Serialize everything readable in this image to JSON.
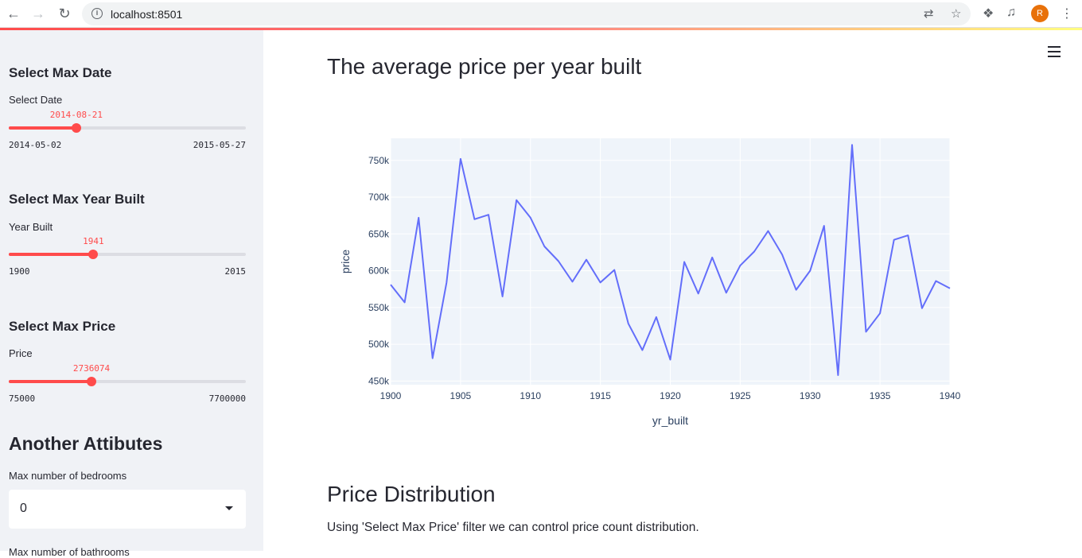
{
  "browser": {
    "url": "localhost:8501",
    "avatar_letter": "R"
  },
  "sidebar": {
    "date_section_title": "Select Max Date",
    "date_label": "Select Date",
    "date_slider": {
      "value": "2014-08-21",
      "min": "2014-05-02",
      "max": "2015-05-27",
      "fraction": 0.285
    },
    "year_section_title": "Select Max Year Built",
    "year_label": "Year Built",
    "year_slider": {
      "value": "1941",
      "min": "1900",
      "max": "2015",
      "fraction": 0.357
    },
    "price_section_title": "Select Max Price",
    "price_label": "Price",
    "price_slider": {
      "value": "2736074",
      "min": "75000",
      "max": "7700000",
      "fraction": 0.349
    },
    "other_section_title": "Another Attibutes",
    "bedrooms_label": "Max number of bedrooms",
    "bedrooms_value": "0",
    "bathrooms_label": "Max number of bathrooms"
  },
  "main": {
    "title": "The average price per year built",
    "section2_title": "Price Distribution",
    "section2_text": "Using 'Select Max Price' filter we can control price count distribution."
  },
  "colors": {
    "accent": "#ff4b4b",
    "line": "#636efa",
    "plot_bg": "#e5ecf6"
  },
  "chart_data": {
    "type": "line",
    "xlabel": "yr_built",
    "ylabel": "price",
    "xlim": [
      1900,
      1940
    ],
    "ylim": [
      445000,
      780000
    ],
    "xticks": [
      1900,
      1905,
      1910,
      1915,
      1920,
      1925,
      1930,
      1935,
      1940
    ],
    "yticks": [
      450000,
      500000,
      550000,
      600000,
      650000,
      700000,
      750000
    ],
    "ytick_labels": [
      "450k",
      "500k",
      "550k",
      "600k",
      "650k",
      "700k",
      "750k"
    ],
    "x": [
      1900,
      1901,
      1902,
      1903,
      1904,
      1905,
      1906,
      1907,
      1908,
      1909,
      1910,
      1911,
      1912,
      1913,
      1914,
      1915,
      1916,
      1917,
      1918,
      1919,
      1920,
      1921,
      1922,
      1923,
      1924,
      1925,
      1926,
      1927,
      1928,
      1929,
      1930,
      1931,
      1932,
      1933,
      1934,
      1935,
      1936,
      1937,
      1938,
      1939,
      1940
    ],
    "y": [
      581000,
      557000,
      672000,
      481000,
      584000,
      752000,
      670000,
      676000,
      565000,
      696000,
      672000,
      633000,
      613000,
      585000,
      615000,
      584000,
      601000,
      528000,
      492000,
      537000,
      479000,
      612000,
      569000,
      618000,
      570000,
      607000,
      626000,
      654000,
      622000,
      574000,
      600000,
      661000,
      458000,
      771000,
      517000,
      542000,
      642000,
      648000,
      549000,
      586000,
      576000
    ]
  }
}
